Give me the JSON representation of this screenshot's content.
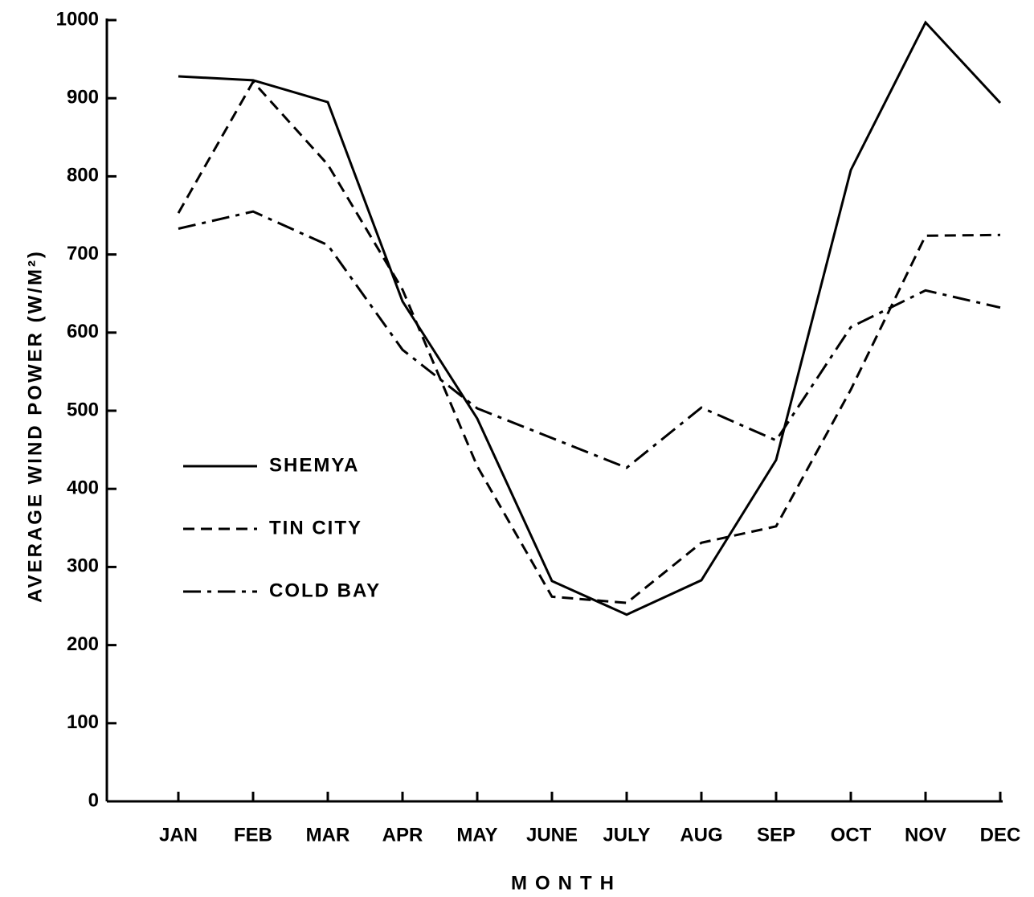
{
  "chart_data": {
    "type": "line",
    "ylabel": "AVERAGE WIND POWER (W/M²)",
    "xlabel": "MONTH",
    "categories": [
      "JAN",
      "FEB",
      "MAR",
      "APR",
      "MAY",
      "JUNE",
      "JULY",
      "AUG",
      "SEP",
      "OCT",
      "NOV",
      "DEC"
    ],
    "series": [
      {
        "name": "SHEMYA",
        "color": "#000000",
        "line_style": "solid",
        "values": [
          928,
          923,
          895,
          640,
          490,
          282,
          239,
          283,
          437,
          808,
          997,
          894
        ]
      },
      {
        "name": "TIN CITY",
        "color": "#000000",
        "line_style": "dashed",
        "values": [
          753,
          921,
          815,
          655,
          429,
          262,
          254,
          331,
          352,
          527,
          724,
          725
        ]
      },
      {
        "name": "COLD BAY",
        "color": "#000000",
        "line_style": "dashdot",
        "values": [
          733,
          755,
          712,
          578,
          503,
          465,
          427,
          504,
          462,
          607,
          654,
          632
        ]
      }
    ],
    "ylim": [
      0,
      1000
    ],
    "yticks": [
      0,
      100,
      200,
      300,
      400,
      500,
      600,
      700,
      800,
      900,
      1000
    ],
    "legend": "left",
    "grid": false
  }
}
